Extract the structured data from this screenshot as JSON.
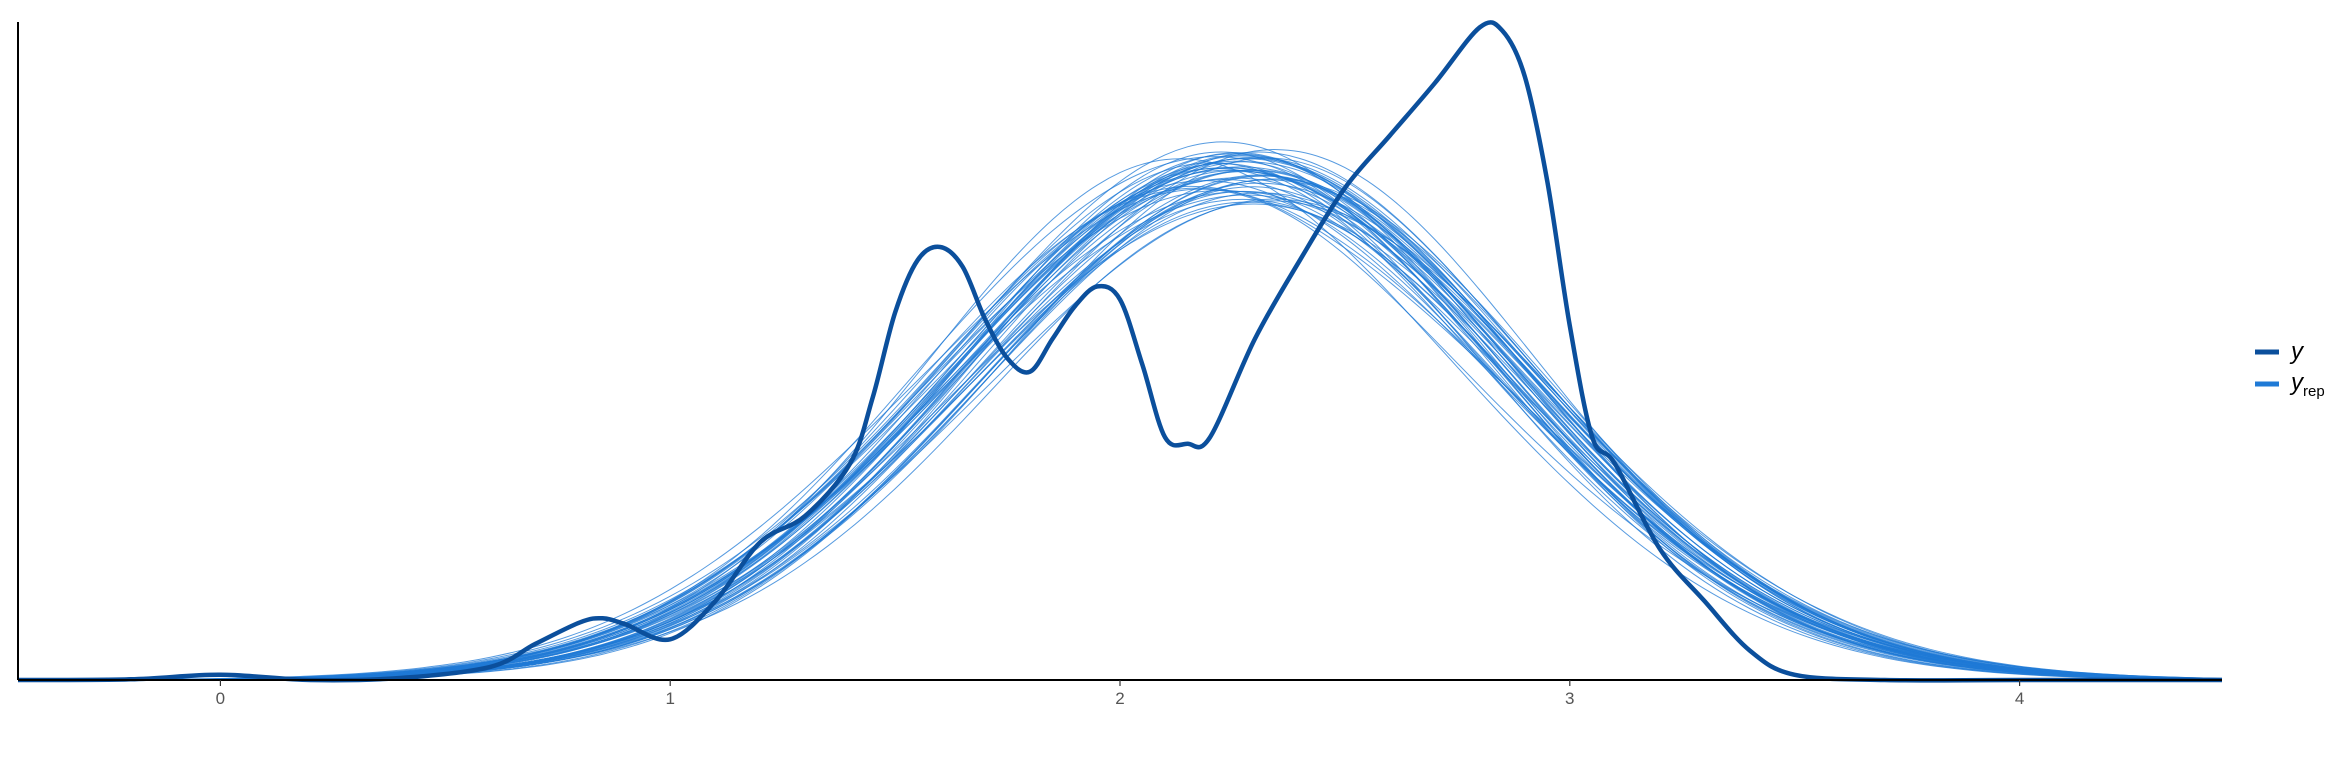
{
  "chart_data": {
    "type": "line",
    "title": "",
    "xlabel": "",
    "ylabel": "",
    "xlim": [
      -0.45,
      4.45
    ],
    "ylim": [
      0,
      1.0
    ],
    "x_ticks": [
      "0",
      "1",
      "2",
      "3",
      "4"
    ],
    "y_axis_ticks_shown": false,
    "grid": false,
    "legend_position": "right",
    "legend": [
      {
        "key": "y",
        "label": "y",
        "subscript": ""
      },
      {
        "key": "yrep",
        "label": "y",
        "subscript": "rep"
      }
    ],
    "colors": {
      "y": "#0b4f9c",
      "yrep": "#1f7ad6",
      "axis": "#000000"
    },
    "observed": {
      "name": "y",
      "x": [
        -0.45,
        -0.2,
        0.0,
        0.2,
        0.4,
        0.6,
        0.7,
        0.8,
        0.85,
        0.9,
        1.0,
        1.1,
        1.2,
        1.3,
        1.4,
        1.45,
        1.5,
        1.55,
        1.6,
        1.65,
        1.7,
        1.75,
        1.8,
        1.85,
        1.9,
        1.95,
        2.0,
        2.05,
        2.1,
        2.15,
        2.2,
        2.3,
        2.4,
        2.5,
        2.6,
        2.7,
        2.8,
        2.85,
        2.9,
        2.95,
        3.0,
        3.05,
        3.1,
        3.2,
        3.3,
        3.4,
        3.5,
        3.7,
        4.0,
        4.45
      ],
      "y": [
        0.0,
        0.001,
        0.008,
        0.0,
        0.003,
        0.02,
        0.055,
        0.088,
        0.094,
        0.085,
        0.062,
        0.12,
        0.21,
        0.25,
        0.33,
        0.43,
        0.56,
        0.64,
        0.66,
        0.63,
        0.55,
        0.49,
        0.47,
        0.52,
        0.57,
        0.6,
        0.58,
        0.48,
        0.37,
        0.36,
        0.37,
        0.52,
        0.64,
        0.75,
        0.83,
        0.91,
        0.995,
        0.99,
        0.92,
        0.76,
        0.54,
        0.37,
        0.33,
        0.2,
        0.12,
        0.045,
        0.008,
        0.0,
        0.0,
        0.0
      ],
      "stroke": 4.5
    },
    "replicates": {
      "name": "yrep",
      "count": 50,
      "mean": 2.25,
      "sd": 0.62,
      "peak": 0.77,
      "mean_spread": 0.06,
      "sd_spread": 0.025,
      "peak_spread": 0.04,
      "wiggle": 0.012,
      "stroke": 1.0,
      "opacity": 0.75
    }
  }
}
